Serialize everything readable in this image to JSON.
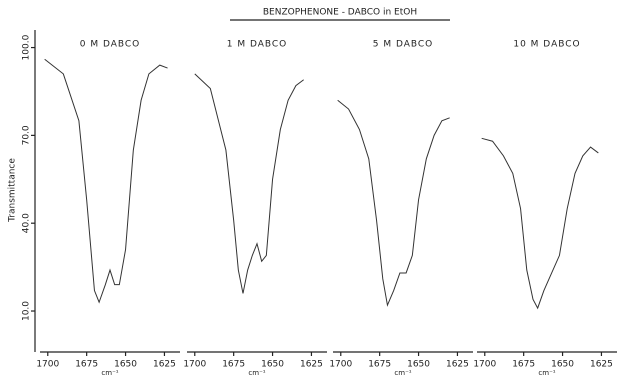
{
  "chart_data": [
    {
      "type": "line",
      "title": "BENZOPHENONE - DABCO in EtOH",
      "subtitle": "0 M DABCO",
      "y_label": "Transmittance",
      "x_label": "cm⁻¹",
      "x": [
        1702,
        1690,
        1680,
        1675,
        1670,
        1667,
        1663,
        1660,
        1657,
        1654,
        1650,
        1645,
        1640,
        1635,
        1628,
        1623
      ],
      "values": [
        96,
        91,
        75,
        48,
        17,
        13,
        19,
        24,
        19,
        19,
        31,
        65,
        82,
        91,
        94,
        93
      ],
      "color": "#333333",
      "xlim": [
        1705,
        1615
      ],
      "xticks": [
        1700,
        1675,
        1650,
        1625
      ],
      "ylim": [
        -4,
        106
      ],
      "yticks": [
        {
          "value": 10,
          "label": "10.0"
        },
        {
          "value": 40,
          "label": "40.0"
        },
        {
          "value": 70,
          "label": "70.0"
        },
        {
          "value": 100,
          "label": "100.0"
        }
      ]
    },
    {
      "type": "line",
      "subtitle": "1 M DABCO",
      "x_label": "cm⁻¹",
      "x": [
        1700,
        1690,
        1680,
        1675,
        1672,
        1669,
        1666,
        1663,
        1660,
        1657,
        1654,
        1650,
        1645,
        1640,
        1635,
        1630
      ],
      "values": [
        91,
        86,
        65,
        41,
        24,
        16,
        24,
        29,
        33,
        27,
        29,
        55,
        72,
        82,
        87,
        89
      ],
      "color": "#333333",
      "xlim": [
        1705,
        1615
      ],
      "xticks": [
        1700,
        1675,
        1650,
        1625
      ],
      "ylim": [
        -4,
        106
      ]
    },
    {
      "type": "line",
      "subtitle": "5 M DABCO",
      "x_label": "cm⁻¹",
      "x": [
        1702,
        1695,
        1688,
        1682,
        1677,
        1673,
        1670,
        1666,
        1662,
        1658,
        1654,
        1650,
        1645,
        1640,
        1635,
        1630
      ],
      "values": [
        82,
        79,
        72,
        62,
        41,
        21,
        12,
        17,
        23,
        23,
        29,
        48,
        62,
        70,
        75,
        76
      ],
      "color": "#333333",
      "xlim": [
        1705,
        1615
      ],
      "xticks": [
        1700,
        1675,
        1650,
        1625
      ],
      "ylim": [
        -4,
        106
      ]
    },
    {
      "type": "line",
      "subtitle": "10 M DABCO",
      "x_label": "cm⁻¹",
      "x": [
        1702,
        1695,
        1688,
        1682,
        1677,
        1673,
        1669,
        1666,
        1662,
        1657,
        1652,
        1647,
        1642,
        1637,
        1632,
        1627
      ],
      "values": [
        69,
        68,
        63,
        57,
        45,
        24,
        14,
        11,
        17,
        23,
        29,
        45,
        57,
        63,
        66,
        64
      ],
      "color": "#333333",
      "xlim": [
        1705,
        1615
      ],
      "xticks": [
        1700,
        1675,
        1650,
        1625
      ],
      "ylim": [
        -4,
        106
      ]
    }
  ]
}
